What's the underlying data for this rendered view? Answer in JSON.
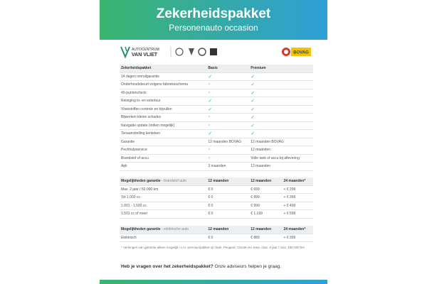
{
  "header": {
    "title": "Zekerheidspakket",
    "subtitle": "Personenauto occasion"
  },
  "logos": {
    "dealer_top": "AUTOCENTRUM",
    "dealer_bottom": "VAN VLIET",
    "bovag": "BOVAG"
  },
  "package_table": {
    "columns": [
      "Zekerheidspakket",
      "Basis",
      "Premium"
    ],
    "rows": [
      [
        "14 dagen omruilgarantie",
        "✓",
        "✓"
      ],
      [
        "Onderhoudsbeurt volgens fabrieksschema",
        "×",
        "✓"
      ],
      [
        "40-puntencheck",
        "×",
        "✓"
      ],
      [
        "Reiniging in- en exterieur",
        "✓",
        "✓"
      ],
      [
        "Vloeistoffen controle en bijvullen",
        "✓",
        "✓"
      ],
      [
        "Bijwerken kleine schades",
        "×",
        "✓"
      ],
      [
        "Navigatie update (indien mogelijk)",
        "×",
        "✓"
      ],
      [
        "Tenaamstelling kenteken",
        "✓",
        "✓"
      ],
      [
        "Garantie",
        "12 maanden BOVAG",
        "12 maanden BOVAG"
      ],
      [
        "Pechhulpservice",
        "×",
        "12 maanden"
      ],
      [
        "Brandstof of accu",
        "×",
        "Volle tank of accu bij aflevering"
      ],
      [
        "Apk",
        "3 maanden",
        "12 maanden"
      ]
    ]
  },
  "fuel_table": {
    "columns": [
      "Mogelijkheden garantie",
      "- brandstof auto",
      "12 maanden",
      "12 maanden",
      "24 maanden*"
    ],
    "rows": [
      [
        "Max. 2 jaar / 50.000 km",
        "€ 0",
        "€ 699",
        "+ € 299"
      ],
      [
        "Tot 1.000 cc",
        "€ 0",
        "€ 899",
        "+ € 399"
      ],
      [
        "1.001 - 1.500 cc",
        "€ 0",
        "€ 999",
        "+ € 499"
      ],
      [
        "1.501 cc of meer",
        "€ 0",
        "€ 1.199",
        "+ € 599"
      ]
    ]
  },
  "electric_table": {
    "columns": [
      "Mogelijkheden garantie",
      "- elektrische auto",
      "12 maanden",
      "12 maanden",
      "24 maanden*"
    ],
    "rows": [
      [
        "Elektrisch",
        "€ 0",
        "€ 889",
        "+ € 399"
      ]
    ]
  },
  "footnote": "* Verlengen van garantie alleen mogelijk i.c.m. premiumpakket op Opel, Peugeot, Citroën en Jeep, max. 8 jaar / max. 150.000 km",
  "contact": {
    "question": "Heb je vragen over het zekerheidspakket?",
    "answer": "Onze adviseurs helpen je graag."
  }
}
